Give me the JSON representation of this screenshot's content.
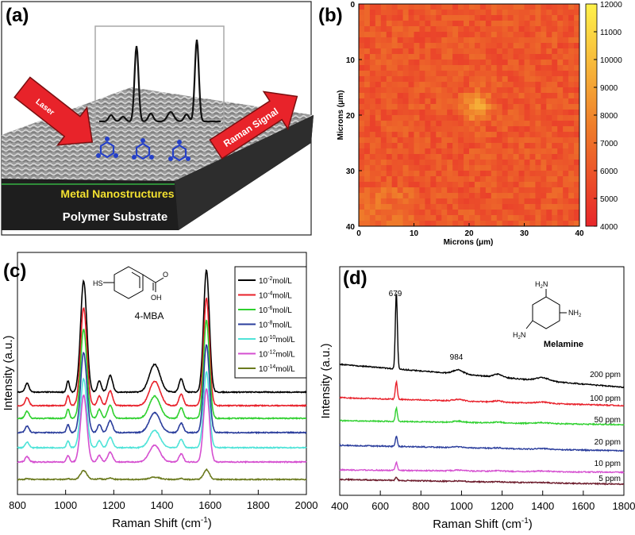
{
  "panels": {
    "a": {
      "label": "(a)",
      "laser_label": "Laser",
      "signal_label": "Raman Signal",
      "metal_label": "Metal Nanostructures",
      "substrate_label": "Polymer Substrate"
    },
    "b": {
      "label": "(b)",
      "xlabel": "Microns (μm)",
      "ylabel": "Microns (μm)",
      "xticks": [
        "0",
        "10",
        "20",
        "30",
        "40"
      ],
      "yticks": [
        "0",
        "10",
        "20",
        "30",
        "40"
      ],
      "cbar_ticks": [
        "12000",
        "11000",
        "10000",
        "9000",
        "8000",
        "7000",
        "6000",
        "5000",
        "4000"
      ]
    },
    "c": {
      "label": "(c)",
      "xlabel": "Raman Shift (cm",
      "xlabel_sup": "-1",
      "xlabel_end": ")",
      "ylabel": "Intensity (a.u.)",
      "xticks": [
        "800",
        "1000",
        "1200",
        "1400",
        "1600",
        "1800",
        "2000"
      ],
      "molecule_name": "4-MBA",
      "sh_label": "HS",
      "oh_label": "OH",
      "o_label": "O"
    },
    "d": {
      "label": "(d)",
      "xlabel": "Raman Shift (cm",
      "xlabel_sup": "-1",
      "xlabel_end": ")",
      "ylabel": "Intensity (a.u.)",
      "xticks": [
        "400",
        "600",
        "800",
        "1000",
        "1200",
        "1400",
        "1600",
        "1800"
      ],
      "molecule_name": "Melamine",
      "nh2_label": "NH",
      "nh2_sub": "2",
      "h2n_label": "H",
      "h2n_sub": "2",
      "h2n_end": "N",
      "peak_679": "679",
      "peak_984": "984"
    }
  },
  "chart_data": [
    {
      "panel": "b",
      "type": "heatmap",
      "x_range": [
        0,
        40
      ],
      "y_range": [
        0,
        40
      ],
      "xlabel": "Microns (μm)",
      "ylabel": "Microns (μm)",
      "colorbar_range": [
        4000,
        12000
      ],
      "colorbar_ticks": [
        4000,
        5000,
        6000,
        7000,
        8000,
        9000,
        10000,
        11000,
        12000
      ],
      "colors": {
        "low": "#e8262a",
        "mid": "#ef7d2a",
        "high": "#fff24a"
      },
      "typical_value": 6000,
      "hotspot": {
        "x": 21,
        "y": 18,
        "value": 9500
      }
    },
    {
      "panel": "c",
      "type": "line",
      "xlabel": "Raman Shift (cm-1)",
      "ylabel": "Intensity (a.u.)",
      "xlim": [
        800,
        2000
      ],
      "xticks": [
        800,
        1000,
        1200,
        1400,
        1600,
        1800,
        2000
      ],
      "peaks_cm1": [
        {
          "x": 840,
          "h": 0.08,
          "w": 8
        },
        {
          "x": 1010,
          "h": 0.1,
          "w": 6
        },
        {
          "x": 1075,
          "h": 1.0,
          "w": 13
        },
        {
          "x": 1140,
          "h": 0.1,
          "w": 8
        },
        {
          "x": 1185,
          "h": 0.15,
          "w": 10
        },
        {
          "x": 1370,
          "h": 0.25,
          "w": 22
        },
        {
          "x": 1480,
          "h": 0.12,
          "w": 9
        },
        {
          "x": 1585,
          "h": 1.1,
          "w": 12
        }
      ],
      "series": [
        {
          "name": "10",
          "exp": "-2",
          "unit": "mol/L",
          "color": "#000000",
          "scale": 1.0
        },
        {
          "name": "10",
          "exp": "-4",
          "unit": "mol/L",
          "color": "#e8202a",
          "scale": 0.88
        },
        {
          "name": "10",
          "exp": "-6",
          "unit": "mol/L",
          "color": "#2fd02f",
          "scale": 0.8
        },
        {
          "name": "10",
          "exp": "-8",
          "unit": "mol/L",
          "color": "#2a3d9c",
          "scale": 0.72
        },
        {
          "name": "10",
          "exp": "-10",
          "unit": "mol/L",
          "color": "#4fe3d8",
          "scale": 0.62
        },
        {
          "name": "10",
          "exp": "-12",
          "unit": "mol/L",
          "color": "#d54fd0",
          "scale": 0.6
        },
        {
          "name": "10",
          "exp": "-14",
          "unit": "mol/L",
          "color": "#6b7a1e",
          "scale": 0.08
        }
      ]
    },
    {
      "panel": "d",
      "type": "line",
      "xlabel": "Raman Shift (cm-1)",
      "ylabel": "Intensity (a.u.)",
      "xlim": [
        400,
        1800
      ],
      "xticks": [
        400,
        600,
        800,
        1000,
        1200,
        1400,
        1600,
        1800
      ],
      "annotations": [
        {
          "x": 679,
          "text": "679"
        },
        {
          "x": 984,
          "text": "984"
        }
      ],
      "series": [
        {
          "name": "200 ppm",
          "color": "#000000"
        },
        {
          "name": "100 ppm",
          "color": "#e8202a"
        },
        {
          "name": "50 ppm",
          "color": "#2fd02f"
        },
        {
          "name": "20 ppm",
          "color": "#2a3d9c"
        },
        {
          "name": "10 ppm",
          "color": "#d54fd0"
        },
        {
          "name": "5 ppm",
          "color": "#6b1a2a"
        }
      ]
    }
  ]
}
